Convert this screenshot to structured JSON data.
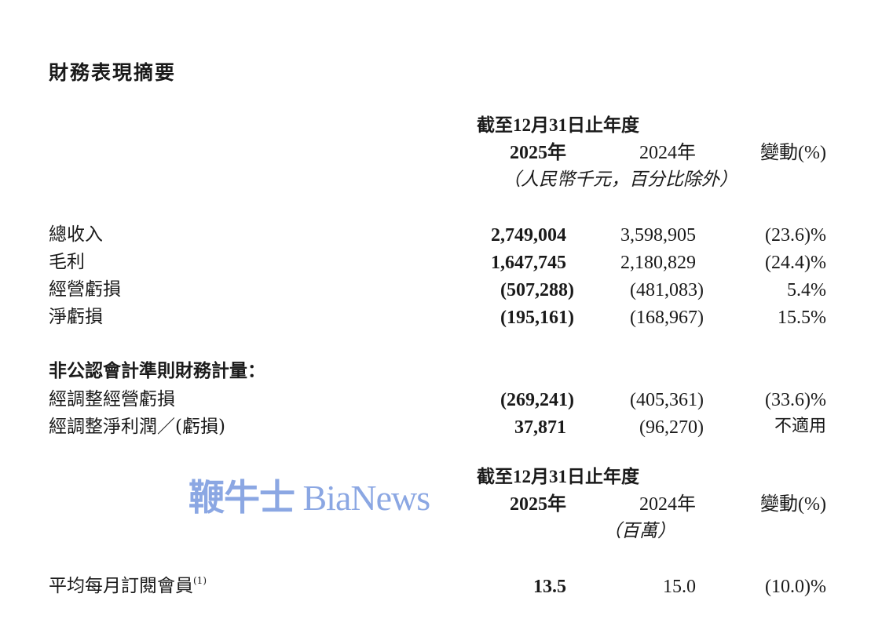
{
  "title": "財務表現摘要",
  "table1": {
    "period": "截至12月31日止年度",
    "col_2025": "2025年",
    "col_2024": "2024年",
    "col_change": "變動(%)",
    "unit": "（人民幣千元，百分比除外）",
    "rows": [
      {
        "label": "總收入",
        "v2025": "2,749,004",
        "v2024": "3,598,905",
        "change": "(23.6)%"
      },
      {
        "label": "毛利",
        "v2025": "1,647,745",
        "v2024": "2,180,829",
        "change": "(24.4)%"
      },
      {
        "label": "經營虧損",
        "v2025": "(507,288)",
        "v2024": "(481,083)",
        "change": "5.4%"
      },
      {
        "label": "淨虧損",
        "v2025": "(195,161)",
        "v2024": "(168,967)",
        "change": "15.5%"
      }
    ],
    "non_gaap_heading": "非公認會計準則財務計量：",
    "non_gaap_rows": [
      {
        "label": "經調整經營虧損",
        "v2025": "(269,241)",
        "v2024": "(405,361)",
        "change": "(33.6)%"
      },
      {
        "label": "經調整淨利潤／(虧損)",
        "v2025": "37,871",
        "v2024": "(96,270)",
        "change": "不適用"
      }
    ]
  },
  "table2": {
    "period": "截至12月31日止年度",
    "col_2025": "2025年",
    "col_2024": "2024年",
    "col_change": "變動(%)",
    "unit": "（百萬）",
    "rows": [
      {
        "label": "平均每月訂閱會員",
        "footnote": "(1)",
        "v2025": "13.5",
        "v2024": "15.0",
        "change": "(10.0)%"
      }
    ]
  },
  "watermark": {
    "cn": "鞭牛士",
    "en": "BiaNews",
    "color": "#7f9ee0"
  }
}
